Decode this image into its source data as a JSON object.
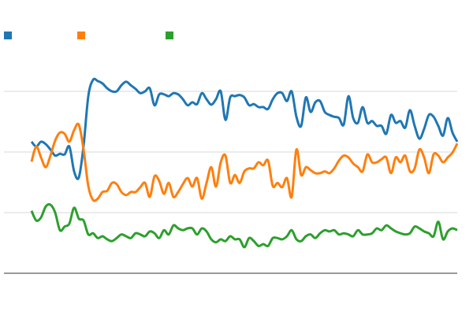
{
  "chart_data": {
    "type": "line",
    "title": "",
    "xlabel": "",
    "ylabel": "",
    "ylim": [
      0,
      40
    ],
    "gridlines_y": [
      10,
      20,
      30
    ],
    "grid": true,
    "legend": "top-left",
    "x": "index",
    "series": [
      {
        "color": "#1f77b4",
        "values": [
          21.7,
          20.9,
          21.7,
          21.3,
          20.4,
          19.4,
          19.7,
          19.6,
          20.9,
          16.8,
          15.8,
          21.0,
          29.2,
          31.9,
          31.7,
          31.3,
          30.5,
          30.0,
          30.0,
          31.0,
          31.6,
          31.0,
          30.4,
          29.7,
          30.0,
          30.5,
          27.7,
          29.5,
          29.5,
          29.2,
          29.7,
          29.5,
          28.7,
          27.7,
          28.2,
          27.9,
          29.7,
          28.7,
          27.8,
          28.7,
          30.0,
          25.3,
          29.0,
          29.2,
          29.4,
          29.0,
          27.7,
          27.9,
          27.4,
          27.4,
          27.1,
          28.7,
          29.7,
          29.7,
          28.4,
          30.0,
          25.8,
          24.3,
          29.0,
          26.6,
          28.2,
          28.4,
          26.6,
          26.1,
          25.8,
          25.6,
          24.5,
          29.2,
          25.6,
          24.8,
          27.4,
          24.8,
          25.1,
          24.3,
          24.3,
          23.0,
          26.1,
          24.8,
          25.1,
          24.0,
          26.9,
          24.3,
          22.2,
          23.8,
          26.1,
          25.8,
          24.3,
          22.7,
          25.6,
          23.2,
          21.7
        ]
      },
      {
        "color": "#ff7f0e",
        "values": [
          18.4,
          20.9,
          19.1,
          17.5,
          19.4,
          21.9,
          23.2,
          23.0,
          21.7,
          23.6,
          24.5,
          20.4,
          14.4,
          12.1,
          12.3,
          13.4,
          13.6,
          14.9,
          14.7,
          13.4,
          12.9,
          13.4,
          13.4,
          14.2,
          14.9,
          12.6,
          16.0,
          15.2,
          13.1,
          14.9,
          12.6,
          13.4,
          14.7,
          15.7,
          14.3,
          15.7,
          12.3,
          14.9,
          17.5,
          14.3,
          18.3,
          19.4,
          14.9,
          16.2,
          14.9,
          16.8,
          17.3,
          17.3,
          18.3,
          17.8,
          18.6,
          14.4,
          14.9,
          14.2,
          15.7,
          12.6,
          20.4,
          16.2,
          17.5,
          17.0,
          16.5,
          16.5,
          16.8,
          16.5,
          17.3,
          18.6,
          19.4,
          19.1,
          18.1,
          17.5,
          16.8,
          19.6,
          18.3,
          18.3,
          18.8,
          19.1,
          16.5,
          19.1,
          18.3,
          19.4,
          16.8,
          17.3,
          20.4,
          19.1,
          16.5,
          19.6,
          19.4,
          18.3,
          19.1,
          19.9,
          21.4
        ]
      },
      {
        "color": "#2ca02c",
        "values": [
          10.3,
          8.7,
          9.2,
          11.0,
          11.3,
          10.0,
          7.1,
          7.7,
          8.2,
          10.8,
          9.0,
          8.7,
          6.4,
          6.6,
          5.8,
          6.1,
          5.6,
          5.3,
          5.8,
          6.4,
          6.1,
          5.8,
          6.6,
          6.4,
          6.1,
          6.9,
          6.6,
          5.8,
          7.1,
          6.4,
          7.9,
          7.4,
          7.1,
          7.4,
          7.4,
          6.4,
          7.4,
          6.9,
          5.6,
          5.1,
          5.6,
          5.3,
          6.1,
          5.6,
          5.6,
          4.3,
          5.8,
          5.3,
          4.5,
          4.8,
          4.5,
          5.8,
          5.8,
          5.6,
          6.1,
          7.1,
          5.6,
          5.3,
          6.1,
          6.4,
          5.8,
          6.6,
          7.1,
          6.9,
          7.1,
          6.4,
          6.6,
          6.4,
          6.1,
          7.1,
          6.4,
          6.4,
          6.6,
          7.4,
          7.1,
          7.9,
          7.4,
          6.9,
          6.6,
          6.4,
          6.6,
          7.7,
          7.4,
          6.9,
          6.6,
          6.1,
          8.5,
          5.6,
          6.9,
          7.4,
          7.1
        ]
      }
    ]
  }
}
